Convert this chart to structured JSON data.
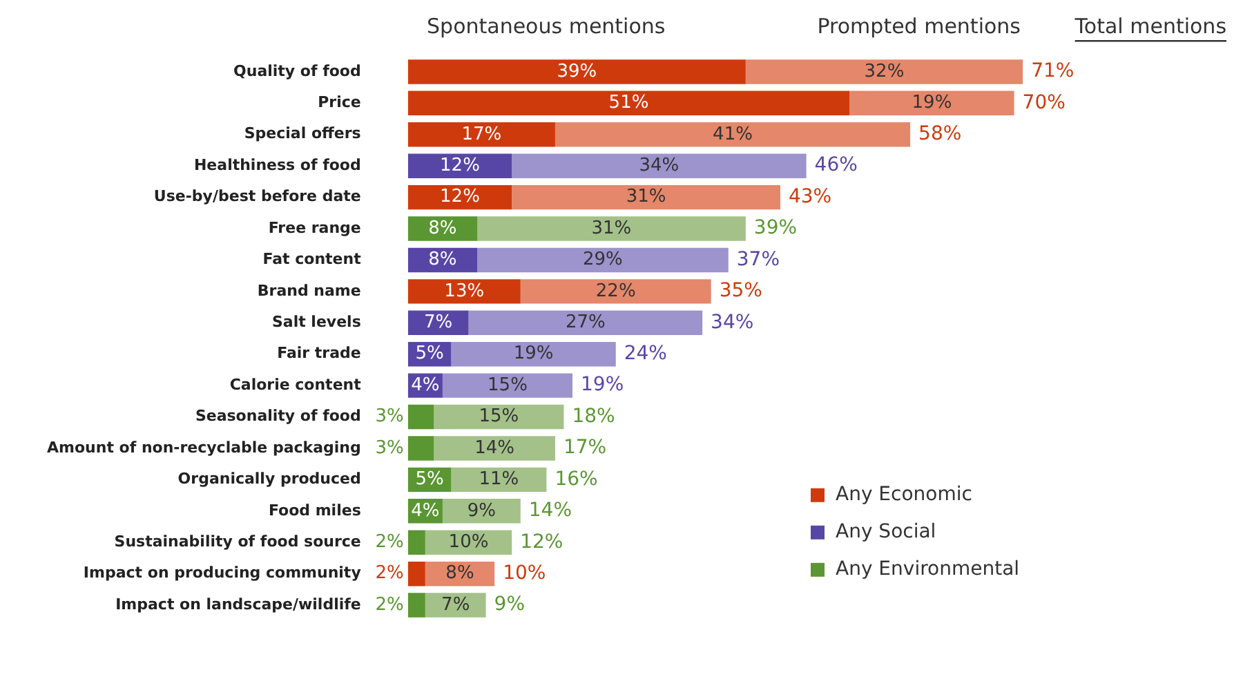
{
  "chart_data": {
    "type": "bar",
    "orientation": "horizontal",
    "stacked": true,
    "legend": "bottom right",
    "annotations": [
      "Spontaneous mentions",
      "Prompted mentions",
      "Total mentions"
    ],
    "categories": [
      "Quality of food",
      "Price",
      "Special offers",
      "Healthiness of food",
      "Use-by/best before date",
      "Free range",
      "Fat content",
      "Brand name",
      "Salt levels",
      "Fair trade",
      "Calorie content",
      "Seasonality of food",
      "Amount of non-recyclable packaging",
      "Organically produced",
      "Food miles",
      "Sustainability of food source",
      "Impact on producing community",
      "Impact on landscape/wildlife"
    ],
    "series": [
      {
        "name": "Any Economic",
        "color": "#cf3a0c",
        "values": [
          39,
          51,
          17,
          null,
          12,
          null,
          null,
          13,
          null,
          null,
          null,
          null,
          null,
          null,
          null,
          null,
          2,
          null
        ],
        "value_labels": [
          "39%",
          "51%",
          "17%",
          null,
          "12%",
          null,
          null,
          "13%",
          null,
          null,
          null,
          null,
          null,
          null,
          null,
          null,
          "2%",
          null
        ]
      },
      {
        "name": "Any Social",
        "color": "#5846a6",
        "values": [
          null,
          null,
          null,
          12,
          null,
          null,
          8,
          null,
          7,
          5,
          4,
          null,
          null,
          null,
          null,
          null,
          null,
          null
        ],
        "value_labels": [
          null,
          null,
          null,
          "12%",
          null,
          null,
          "8%",
          null,
          "7%",
          "5%",
          "4%",
          null,
          null,
          null,
          null,
          null,
          null,
          null
        ]
      },
      {
        "name": "Any Environmental",
        "color": "#5a9632",
        "values": [
          null,
          null,
          null,
          null,
          null,
          8,
          null,
          null,
          null,
          null,
          null,
          3,
          3,
          5,
          4,
          2,
          null,
          2
        ],
        "value_labels": [
          null,
          null,
          null,
          null,
          null,
          "8%",
          null,
          null,
          null,
          null,
          null,
          "3%",
          "3%",
          "5%",
          "4%",
          "2%",
          null,
          "2%"
        ]
      },
      {
        "color": "#e5876a",
        "values": [
          32,
          19,
          41,
          null,
          31,
          null,
          null,
          22,
          null,
          null,
          null,
          null,
          null,
          null,
          null,
          null,
          8,
          null
        ],
        "value_labels": [
          "32%",
          "19%",
          "41%",
          null,
          "31%",
          null,
          null,
          "22%",
          null,
          null,
          null,
          null,
          null,
          null,
          null,
          null,
          "8%",
          null
        ]
      },
      {
        "color": "#9d93cd",
        "values": [
          null,
          null,
          null,
          34,
          null,
          null,
          29,
          null,
          27,
          19,
          15,
          null,
          null,
          null,
          null,
          null,
          null,
          null
        ],
        "value_labels": [
          null,
          null,
          null,
          "34%",
          null,
          null,
          "29%",
          null,
          "27%",
          "19%",
          "15%",
          null,
          null,
          null,
          null,
          null,
          null,
          null
        ]
      },
      {
        "color": "#a3c189",
        "values": [
          null,
          null,
          null,
          null,
          null,
          31,
          null,
          null,
          null,
          null,
          null,
          15,
          14,
          11,
          9,
          10,
          null,
          7
        ],
        "value_labels": [
          null,
          null,
          null,
          null,
          null,
          "31%",
          null,
          null,
          null,
          null,
          null,
          "15%",
          "14%",
          "11%",
          "9%",
          "10%",
          null,
          "7%"
        ]
      }
    ],
    "totals": [
      "71%",
      "70%",
      "58%",
      "46%",
      "43%",
      "39%",
      "37%",
      "35%",
      "34%",
      "24%",
      "19%",
      "18%",
      "17%",
      "16%",
      "14%",
      "12%",
      "10%",
      "9%"
    ]
  }
}
